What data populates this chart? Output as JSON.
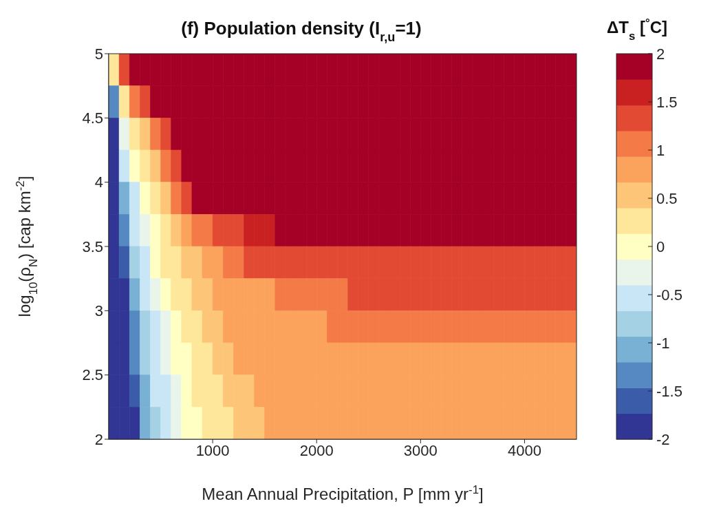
{
  "chart_data": {
    "type": "heatmap",
    "title": "(f) Population density (I$_{r,u}$=1)",
    "xlabel": "Mean Annual Precipitation, P [mm yr$^{-1}$]",
    "ylabel": "log$_{10}$(ρ$_{N}$) [cap km$^{-2}$]",
    "clabel": "ΔT$_{s}$ [$^{°}$C]",
    "x": [
      50,
      150,
      250,
      350,
      450,
      550,
      650,
      750,
      850,
      950,
      1050,
      1150,
      1250,
      1350,
      1450,
      1550,
      1650,
      1750,
      1850,
      1950,
      2050,
      2150,
      2250,
      2350,
      2450,
      2550,
      2650,
      2750,
      2850,
      2950,
      3050,
      3150,
      3250,
      3350,
      3450,
      3550,
      3650,
      3750,
      3850,
      3950,
      4050,
      4150,
      4250,
      4350,
      4450
    ],
    "xlim": [
      0,
      4500
    ],
    "ylim": [
      2,
      5
    ],
    "xticks": [
      1000,
      2000,
      3000,
      4000
    ],
    "yticks": [
      2,
      2.5,
      3,
      3.5,
      4,
      4.5,
      5
    ],
    "clim": [
      -2,
      2
    ],
    "cticks": [
      -2,
      -1.5,
      -1,
      -0.5,
      0,
      0.5,
      1,
      1.5,
      2
    ],
    "colors": [
      "#313695",
      "#3a5ca9",
      "#5689c1",
      "#78b1d4",
      "#a4d1e3",
      "#c8e6f5",
      "#e9f5ea",
      "#ffffc4",
      "#fee79a",
      "#fdc578",
      "#fba35c",
      "#f47b47",
      "#e34a33",
      "#c92122",
      "#a50026"
    ],
    "cells": [
      [
        0.3,
        1.3,
        1.9,
        1.9,
        1.9,
        1.9,
        1.9,
        1.9,
        1.9,
        1.9,
        1.9,
        1.9,
        1.9,
        1.9,
        1.9,
        1.9,
        1.9,
        1.9,
        1.9,
        1.9,
        1.9,
        1.9,
        1.9,
        1.9,
        1.9,
        1.9,
        1.9,
        1.9,
        1.9,
        1.9,
        1.9,
        1.9,
        1.9,
        1.9,
        1.9,
        1.9,
        1.9,
        1.9,
        1.9,
        1.9,
        1.9,
        1.9,
        1.9,
        1.9,
        1.9
      ],
      [
        -1.3,
        0.3,
        1.1,
        1.3,
        1.9,
        1.9,
        1.9,
        1.9,
        1.9,
        1.9,
        1.9,
        1.9,
        1.9,
        1.9,
        1.9,
        1.9,
        1.9,
        1.9,
        1.9,
        1.9,
        1.9,
        1.9,
        1.9,
        1.9,
        1.9,
        1.9,
        1.9,
        1.9,
        1.9,
        1.9,
        1.9,
        1.9,
        1.9,
        1.9,
        1.9,
        1.9,
        1.9,
        1.9,
        1.9,
        1.9,
        1.9,
        1.9,
        1.9,
        1.9,
        1.9
      ],
      [
        -1.9,
        -0.3,
        0.3,
        0.5,
        1.1,
        1.3,
        1.9,
        1.9,
        1.9,
        1.9,
        1.9,
        1.9,
        1.9,
        1.9,
        1.9,
        1.9,
        1.9,
        1.9,
        1.9,
        1.9,
        1.9,
        1.9,
        1.9,
        1.9,
        1.9,
        1.9,
        1.9,
        1.9,
        1.9,
        1.9,
        1.9,
        1.9,
        1.9,
        1.9,
        1.9,
        1.9,
        1.9,
        1.9,
        1.9,
        1.9,
        1.9,
        1.9,
        1.9,
        1.9,
        1.9
      ],
      [
        -1.9,
        -0.5,
        0,
        0.3,
        0.5,
        1.1,
        1.3,
        1.9,
        1.9,
        1.9,
        1.9,
        1.9,
        1.9,
        1.9,
        1.9,
        1.9,
        1.9,
        1.9,
        1.9,
        1.9,
        1.9,
        1.9,
        1.9,
        1.9,
        1.9,
        1.9,
        1.9,
        1.9,
        1.9,
        1.9,
        1.9,
        1.9,
        1.9,
        1.9,
        1.9,
        1.9,
        1.9,
        1.9,
        1.9,
        1.9,
        1.9,
        1.9,
        1.9,
        1.9,
        1.9
      ],
      [
        -1.9,
        -1.1,
        -0.5,
        0,
        0.3,
        0.5,
        1.1,
        1.3,
        1.9,
        1.9,
        1.9,
        1.9,
        1.9,
        1.9,
        1.9,
        1.9,
        1.9,
        1.9,
        1.9,
        1.9,
        1.9,
        1.9,
        1.9,
        1.9,
        1.9,
        1.9,
        1.9,
        1.9,
        1.9,
        1.9,
        1.9,
        1.9,
        1.9,
        1.9,
        1.9,
        1.9,
        1.9,
        1.9,
        1.9,
        1.9,
        1.9,
        1.9,
        1.9,
        1.9,
        1.9
      ],
      [
        -1.9,
        -1.3,
        -0.5,
        -0.3,
        0,
        0.3,
        0.5,
        0.8,
        1.1,
        1.1,
        1.3,
        1.3,
        1.3,
        1.6,
        1.6,
        1.6,
        1.9,
        1.9,
        1.9,
        1.9,
        1.9,
        1.9,
        1.9,
        1.9,
        1.9,
        1.9,
        1.9,
        1.9,
        1.9,
        1.9,
        1.9,
        1.9,
        1.9,
        1.9,
        1.9,
        1.9,
        1.9,
        1.9,
        1.9,
        1.9,
        1.9,
        1.9,
        1.9,
        1.9,
        1.9
      ],
      [
        -1.9,
        -1.6,
        -0.8,
        -0.5,
        0,
        0.3,
        0.3,
        0.5,
        0.5,
        0.8,
        0.8,
        1.1,
        1.1,
        1.3,
        1.3,
        1.3,
        1.3,
        1.3,
        1.3,
        1.3,
        1.3,
        1.3,
        1.3,
        1.3,
        1.3,
        1.3,
        1.3,
        1.3,
        1.3,
        1.3,
        1.3,
        1.3,
        1.3,
        1.3,
        1.3,
        1.3,
        1.3,
        1.3,
        1.3,
        1.3,
        1.3,
        1.3,
        1.3,
        1.3,
        1.3
      ],
      [
        -1.9,
        -1.9,
        -1.1,
        -0.5,
        -0.3,
        0,
        0.3,
        0.3,
        0.5,
        0.5,
        0.8,
        0.8,
        0.8,
        0.8,
        0.8,
        0.8,
        1.1,
        1.1,
        1.1,
        1.1,
        1.1,
        1.1,
        1.1,
        1.3,
        1.3,
        1.3,
        1.3,
        1.3,
        1.3,
        1.3,
        1.3,
        1.3,
        1.3,
        1.3,
        1.3,
        1.3,
        1.3,
        1.3,
        1.3,
        1.3,
        1.3,
        1.3,
        1.3,
        1.3,
        1.3
      ],
      [
        -1.9,
        -1.9,
        -1.3,
        -0.8,
        -0.5,
        -0.3,
        0,
        0.3,
        0.3,
        0.5,
        0.5,
        0.8,
        0.8,
        0.8,
        0.8,
        0.8,
        0.8,
        0.8,
        0.8,
        0.8,
        0.8,
        1.1,
        1.1,
        1.1,
        1.1,
        1.1,
        1.1,
        1.1,
        1.1,
        1.1,
        1.1,
        1.1,
        1.1,
        1.1,
        1.1,
        1.1,
        1.1,
        1.1,
        1.1,
        1.1,
        1.1,
        1.1,
        1.1,
        1.1,
        1.1
      ],
      [
        -1.9,
        -1.9,
        -1.3,
        -0.8,
        -0.5,
        -0.3,
        0,
        0,
        0.3,
        0.3,
        0.5,
        0.5,
        0.8,
        0.8,
        0.8,
        0.8,
        0.8,
        0.8,
        0.8,
        0.8,
        0.8,
        0.8,
        0.8,
        0.8,
        0.8,
        0.8,
        0.8,
        0.8,
        0.8,
        0.8,
        0.8,
        0.8,
        0.8,
        0.8,
        0.8,
        0.8,
        0.8,
        0.8,
        0.8,
        0.8,
        0.8,
        0.8,
        0.8,
        0.8,
        0.8
      ],
      [
        -1.9,
        -1.9,
        -1.6,
        -1.1,
        -0.5,
        -0.5,
        -0.3,
        0,
        0.3,
        0.3,
        0.3,
        0.5,
        0.5,
        0.5,
        0.8,
        0.8,
        0.8,
        0.8,
        0.8,
        0.8,
        0.8,
        0.8,
        0.8,
        0.8,
        0.8,
        0.8,
        0.8,
        0.8,
        0.8,
        0.8,
        0.8,
        0.8,
        0.8,
        0.8,
        0.8,
        0.8,
        0.8,
        0.8,
        0.8,
        0.8,
        0.8,
        0.8,
        0.8,
        0.8,
        0.8
      ],
      [
        -1.9,
        -1.9,
        -1.9,
        -1.1,
        -0.8,
        -0.5,
        -0.3,
        0,
        0,
        0.3,
        0.3,
        0.3,
        0.5,
        0.5,
        0.5,
        0.8,
        0.8,
        0.8,
        0.8,
        0.8,
        0.8,
        0.8,
        0.8,
        0.8,
        0.8,
        0.8,
        0.8,
        0.8,
        0.8,
        0.8,
        0.8,
        0.8,
        0.8,
        0.8,
        0.8,
        0.8,
        0.8,
        0.8,
        0.8,
        0.8,
        0.8,
        0.8,
        0.8,
        0.8,
        0.8
      ]
    ]
  }
}
